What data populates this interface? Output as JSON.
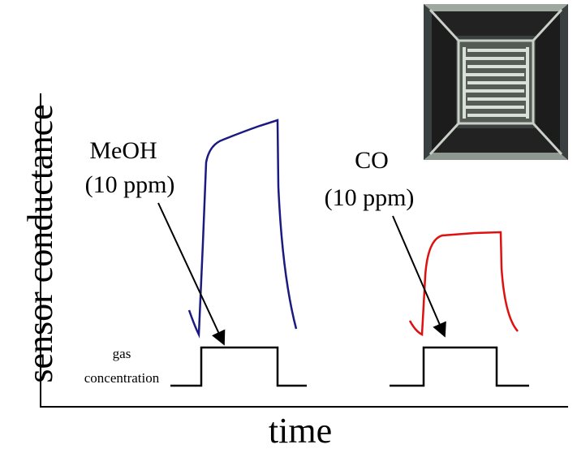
{
  "axes": {
    "y_label": "sensor conductance",
    "x_label": "time"
  },
  "annotations": {
    "meoh": {
      "gas": "MeOH",
      "conc": "(10 ppm)"
    },
    "co": {
      "gas": "CO",
      "conc": "(10 ppm)"
    }
  },
  "gas_label": {
    "line1": "gas",
    "line2": "concentration"
  }
}
